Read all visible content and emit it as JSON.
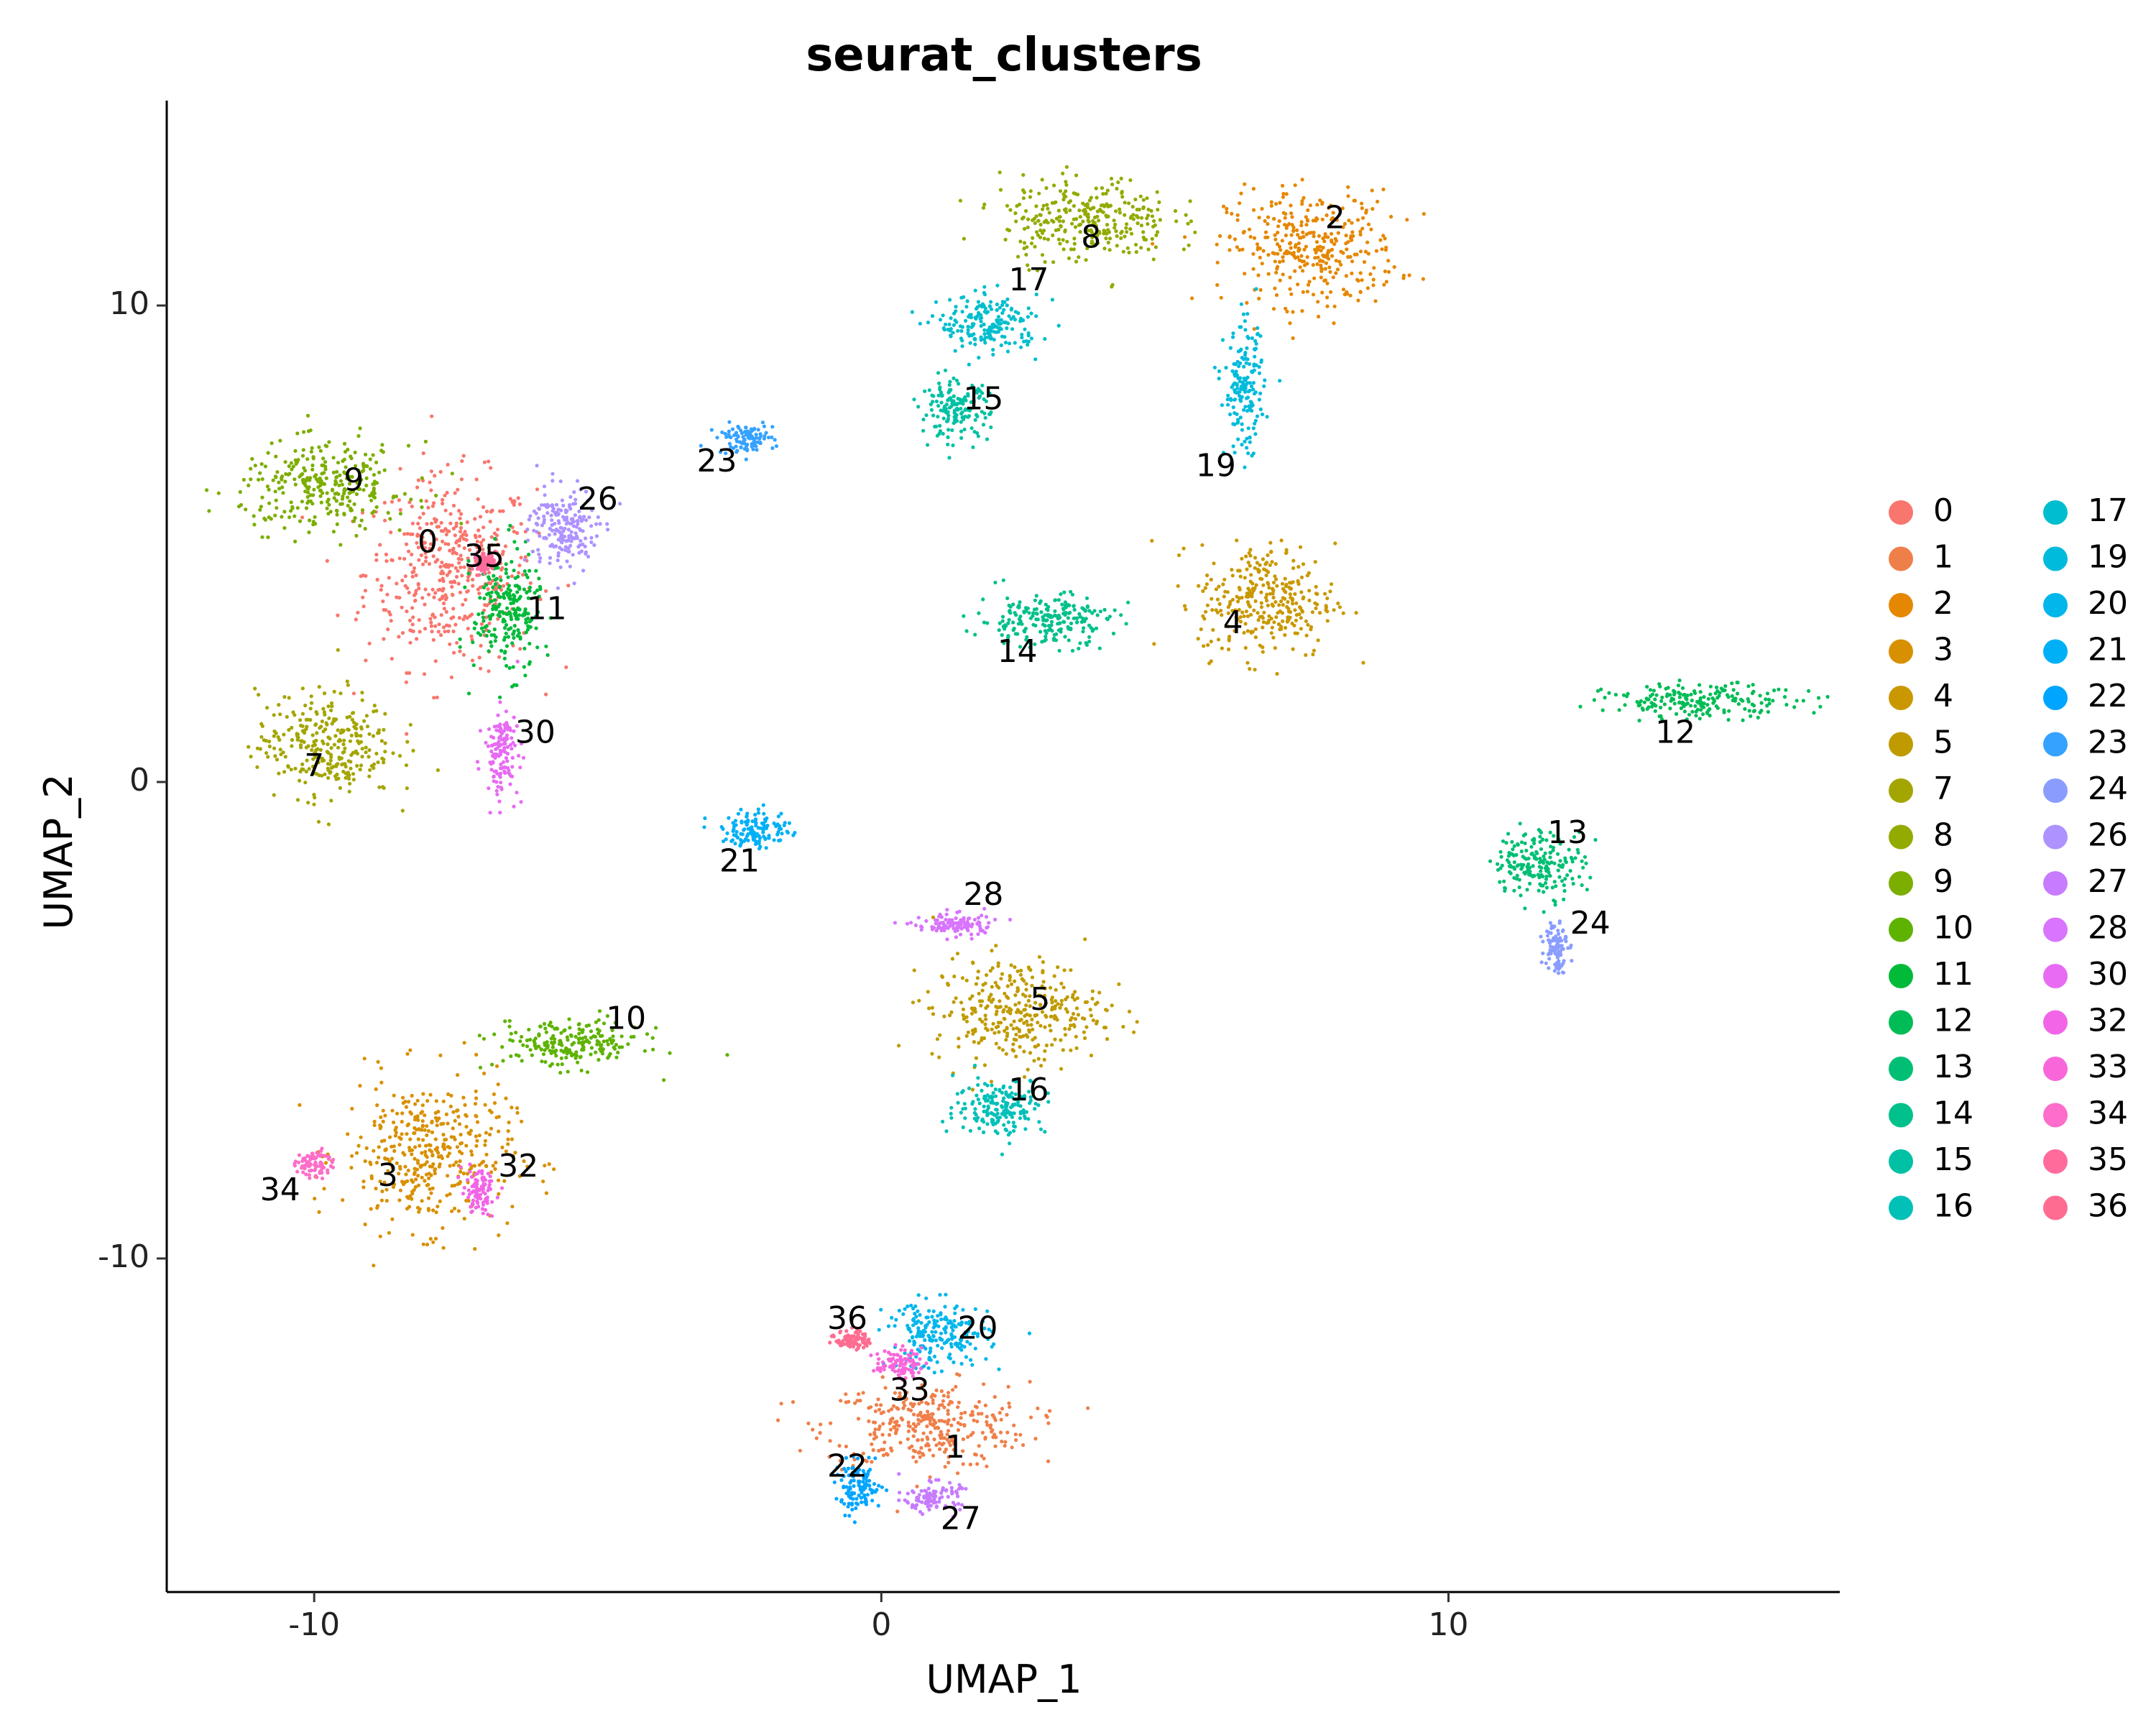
{
  "chart_data": {
    "type": "scatter",
    "title": "seurat_clusters",
    "xlabel": "UMAP_1",
    "ylabel": "UMAP_2",
    "xlim": [
      -12.6,
      16.9
    ],
    "ylim": [
      -17,
      14.3
    ],
    "xticks": [
      -10,
      0,
      10
    ],
    "yticks": [
      -10,
      0,
      10
    ],
    "grid": false,
    "legend_position": "right",
    "legend_columns": 2,
    "clusters": [
      {
        "name": "0",
        "color": "#F8766D",
        "center": [
          -7.6,
          4.4
        ],
        "spread": [
          1.5,
          2.0
        ],
        "label_pos": [
          -8.0,
          5.0
        ]
      },
      {
        "name": "1",
        "color": "#EF7F49",
        "center": [
          0.8,
          -13.5
        ],
        "spread": [
          1.8,
          0.9
        ],
        "label_pos": [
          1.3,
          -14.0
        ]
      },
      {
        "name": "2",
        "color": "#E58700",
        "center": [
          7.6,
          11.2
        ],
        "spread": [
          1.5,
          1.2
        ],
        "label_pos": [
          8.0,
          11.8
        ]
      },
      {
        "name": "3",
        "color": "#D89000",
        "center": [
          -8.0,
          -7.8
        ],
        "spread": [
          1.5,
          1.6
        ],
        "label_pos": [
          -8.7,
          -8.3
        ]
      },
      {
        "name": "4",
        "color": "#C99800",
        "center": [
          6.8,
          3.8
        ],
        "spread": [
          1.2,
          1.2
        ],
        "label_pos": [
          6.2,
          3.3
        ]
      },
      {
        "name": "5",
        "color": "#C09B00",
        "center": [
          2.4,
          -4.8
        ],
        "spread": [
          1.5,
          1.1
        ],
        "label_pos": [
          2.8,
          -4.6
        ]
      },
      {
        "name": "7",
        "color": "#A3A500",
        "center": [
          -9.8,
          0.8
        ],
        "spread": [
          1.2,
          1.1
        ],
        "label_pos": [
          -10.0,
          0.3
        ]
      },
      {
        "name": "8",
        "color": "#93AA00",
        "center": [
          3.6,
          11.8
        ],
        "spread": [
          1.5,
          0.9
        ],
        "label_pos": [
          3.7,
          11.4
        ]
      },
      {
        "name": "9",
        "color": "#7CAE00",
        "center": [
          -9.8,
          6.2
        ],
        "spread": [
          1.5,
          0.9
        ],
        "label_pos": [
          -9.3,
          6.3
        ]
      },
      {
        "name": "10",
        "color": "#5EB300",
        "center": [
          -5.5,
          -5.5
        ],
        "spread": [
          1.3,
          0.5
        ],
        "label_pos": [
          -4.5,
          -5.0
        ]
      },
      {
        "name": "11",
        "color": "#00BA38",
        "center": [
          -6.6,
          3.6
        ],
        "spread": [
          0.6,
          1.3
        ],
        "label_pos": [
          -5.9,
          3.6
        ]
      },
      {
        "name": "12",
        "color": "#00BC56",
        "center": [
          14.5,
          1.7
        ],
        "spread": [
          1.7,
          0.35
        ],
        "label_pos": [
          14.0,
          1.0
        ]
      },
      {
        "name": "13",
        "color": "#00BF74",
        "center": [
          11.6,
          -1.7
        ],
        "spread": [
          0.8,
          0.7
        ],
        "label_pos": [
          12.1,
          -1.1
        ]
      },
      {
        "name": "14",
        "color": "#00C08B",
        "center": [
          2.9,
          3.4
        ],
        "spread": [
          1.2,
          0.55
        ],
        "label_pos": [
          2.4,
          2.7
        ]
      },
      {
        "name": "15",
        "color": "#00C1A3",
        "center": [
          1.3,
          7.8
        ],
        "spread": [
          0.6,
          0.6
        ],
        "label_pos": [
          1.8,
          8.0
        ]
      },
      {
        "name": "16",
        "color": "#00C0B8",
        "center": [
          2.1,
          -6.8
        ],
        "spread": [
          0.8,
          0.6
        ],
        "label_pos": [
          2.6,
          -6.5
        ]
      },
      {
        "name": "17",
        "color": "#00BECD",
        "center": [
          1.9,
          9.6
        ],
        "spread": [
          0.9,
          0.6
        ],
        "label_pos": [
          2.6,
          10.5
        ]
      },
      {
        "name": "19",
        "color": "#00BBDB",
        "center": [
          6.4,
          8.2
        ],
        "spread": [
          0.35,
          1.3
        ],
        "label_pos": [
          5.9,
          6.6
        ]
      },
      {
        "name": "20",
        "color": "#00B6EB",
        "center": [
          1.0,
          -11.6
        ],
        "spread": [
          0.9,
          0.7
        ],
        "label_pos": [
          1.7,
          -11.5
        ]
      },
      {
        "name": "21",
        "color": "#00B0F6",
        "center": [
          -2.2,
          -1.0
        ],
        "spread": [
          0.6,
          0.4
        ],
        "label_pos": [
          -2.5,
          -1.7
        ]
      },
      {
        "name": "22",
        "color": "#00A5FF",
        "center": [
          -0.4,
          -14.8
        ],
        "spread": [
          0.4,
          0.5
        ],
        "label_pos": [
          -0.6,
          -14.4
        ]
      },
      {
        "name": "23",
        "color": "#35A2FF",
        "center": [
          -2.4,
          7.2
        ],
        "spread": [
          0.5,
          0.3
        ],
        "label_pos": [
          -2.9,
          6.7
        ]
      },
      {
        "name": "24",
        "color": "#8A9DFF",
        "center": [
          11.9,
          -3.4
        ],
        "spread": [
          0.2,
          0.6
        ],
        "label_pos": [
          12.5,
          -3.0
        ]
      },
      {
        "name": "26",
        "color": "#AE92FF",
        "center": [
          -5.6,
          5.3
        ],
        "spread": [
          0.6,
          0.9
        ],
        "label_pos": [
          -5.0,
          5.9
        ]
      },
      {
        "name": "27",
        "color": "#C77CFF",
        "center": [
          0.9,
          -15.0
        ],
        "spread": [
          0.5,
          0.3
        ],
        "label_pos": [
          1.4,
          -15.5
        ]
      },
      {
        "name": "28",
        "color": "#D874FD",
        "center": [
          1.3,
          -3.0
        ],
        "spread": [
          0.7,
          0.25
        ],
        "label_pos": [
          1.8,
          -2.4
        ]
      },
      {
        "name": "30",
        "color": "#E76BF3",
        "center": [
          -6.7,
          0.6
        ],
        "spread": [
          0.3,
          0.9
        ],
        "label_pos": [
          -6.1,
          1.0
        ]
      },
      {
        "name": "32",
        "color": "#F265E7",
        "center": [
          -7.1,
          -8.6
        ],
        "spread": [
          0.3,
          0.45
        ],
        "label_pos": [
          -6.4,
          -8.1
        ]
      },
      {
        "name": "33",
        "color": "#F966D9",
        "center": [
          0.3,
          -12.2
        ],
        "spread": [
          0.4,
          0.3
        ],
        "label_pos": [
          0.5,
          -12.8
        ]
      },
      {
        "name": "34",
        "color": "#FE6DC9",
        "center": [
          -10.0,
          -8.0
        ],
        "spread": [
          0.3,
          0.3
        ],
        "label_pos": [
          -10.6,
          -8.6
        ]
      },
      {
        "name": "35",
        "color": "#FF6C9C",
        "center": [
          -7.0,
          4.6
        ],
        "spread": [
          0.2,
          0.2
        ],
        "label_pos": [
          -7.0,
          4.7
        ]
      },
      {
        "name": "36",
        "color": "#FF6C91",
        "center": [
          -0.5,
          -11.7
        ],
        "spread": [
          0.3,
          0.2
        ],
        "label_pos": [
          -0.6,
          -11.3
        ]
      }
    ]
  }
}
